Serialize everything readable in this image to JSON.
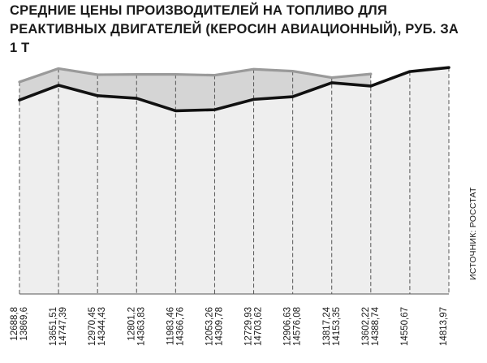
{
  "chart_data": {
    "type": "area",
    "title": "Средние цены производителей на топливо для реактивных двигателей (керосин авиационный), руб. за 1 т",
    "source": "Источник: Росстат",
    "ylim": [
      0,
      15300
    ],
    "grid": "vertical-dashed",
    "colors": {
      "upper_area": "#d5d5d5",
      "lower_area": "#eeeeee",
      "upper_line": "#9a9a9a",
      "lower_line": "#111111",
      "grid": "#555555"
    },
    "series": [
      {
        "values": [
          13869.6,
          14747.39,
          14344.43,
          14363.83,
          14366.76,
          14309.78,
          14703.62,
          14576.08,
          14153.35,
          14388.74
        ]
      },
      {
        "values": [
          12688.8,
          13651.51,
          12970.45,
          12801.2,
          11983.46,
          12053.26,
          12729.93,
          12906.63,
          13817.24,
          13602.22,
          14550.67,
          14813.97
        ]
      }
    ],
    "tick_labels": [
      [
        "12688,8",
        "13869,6"
      ],
      [
        "13651,51",
        "14747,39"
      ],
      [
        "12970,45",
        "14344,43"
      ],
      [
        "12801,2",
        "14363,83"
      ],
      [
        "11983,46",
        "14366,76"
      ],
      [
        "12053,26",
        "14309,78"
      ],
      [
        "12729,93",
        "14703,62"
      ],
      [
        "12906,63",
        "14576,08"
      ],
      [
        "13817,24",
        "14153,35"
      ],
      [
        "13602,22",
        "14388,74"
      ],
      [
        "14550,67"
      ],
      [
        "14813,97"
      ]
    ]
  }
}
